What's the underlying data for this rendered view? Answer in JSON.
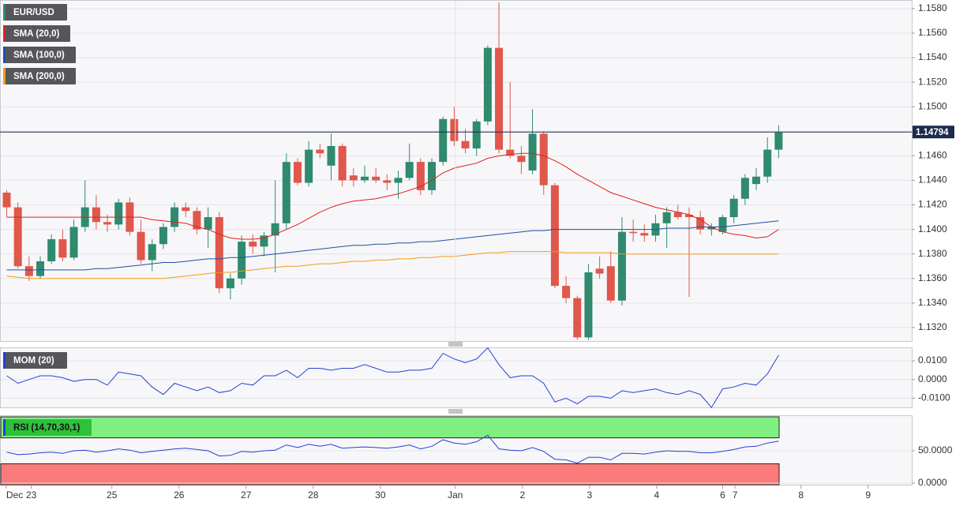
{
  "chart_data": [
    {
      "type": "candlestick",
      "name": "EUR/USD",
      "up_color": "#2f8a6e",
      "down_color": "#e0574b",
      "x": [
        0,
        1,
        2,
        3,
        4,
        5,
        6,
        7,
        8,
        9,
        10,
        11,
        12,
        13,
        14,
        15,
        16,
        17,
        18,
        19,
        20,
        21,
        22,
        23,
        24,
        25,
        26,
        27,
        28,
        29,
        30,
        31,
        32,
        33,
        34,
        35,
        36,
        37,
        38,
        39,
        40,
        41,
        42,
        43,
        44,
        45,
        46,
        47,
        48,
        49,
        50,
        51,
        52,
        53,
        54,
        55,
        56,
        57,
        58,
        59,
        60,
        61,
        62,
        63,
        64,
        65,
        66,
        67,
        68,
        69
      ],
      "open": [
        1.143,
        1.1418,
        1.137,
        1.1362,
        1.1374,
        1.1392,
        1.1377,
        1.1402,
        1.1418,
        1.1406,
        1.1404,
        1.1422,
        1.1398,
        1.1375,
        1.1388,
        1.1402,
        1.1418,
        1.1415,
        1.14,
        1.141,
        1.1352,
        1.136,
        1.139,
        1.1386,
        1.1395,
        1.1405,
        1.1455,
        1.1438,
        1.1465,
        1.1452,
        1.1468,
        1.1444,
        1.144,
        1.1443,
        1.144,
        1.1438,
        1.1442,
        1.1455,
        1.1432,
        1.1455,
        1.149,
        1.1472,
        1.1466,
        1.1488,
        1.1548,
        1.1465,
        1.146,
        1.1448,
        1.1478,
        1.1436,
        1.1354,
        1.1344,
        1.1312,
        1.1368,
        1.137,
        1.1342,
        1.1398,
        1.1397,
        1.1395,
        1.1405,
        1.1414,
        1.1412,
        1.141,
        1.14,
        1.1398,
        1.141,
        1.1425,
        1.1437,
        1.1443,
        1.1465
      ],
      "high": [
        1.1432,
        1.1422,
        1.1378,
        1.1378,
        1.1396,
        1.14,
        1.1408,
        1.144,
        1.1428,
        1.1412,
        1.1425,
        1.1426,
        1.1408,
        1.1392,
        1.1405,
        1.1422,
        1.1422,
        1.1418,
        1.1418,
        1.1414,
        1.1364,
        1.1395,
        1.1396,
        1.1398,
        1.144,
        1.1462,
        1.1458,
        1.1472,
        1.147,
        1.1478,
        1.147,
        1.145,
        1.1452,
        1.145,
        1.1445,
        1.1448,
        1.147,
        1.1458,
        1.1458,
        1.1492,
        1.15,
        1.1482,
        1.149,
        1.155,
        1.1585,
        1.152,
        1.1468,
        1.1498,
        1.148,
        1.1438,
        1.1362,
        1.1346,
        1.1372,
        1.1378,
        1.1382,
        1.141,
        1.1408,
        1.1404,
        1.1412,
        1.1418,
        1.142,
        1.1418,
        1.1415,
        1.1405,
        1.1412,
        1.1428,
        1.1445,
        1.145,
        1.1475,
        1.1485
      ],
      "low": [
        1.141,
        1.1368,
        1.1358,
        1.136,
        1.1372,
        1.1374,
        1.1375,
        1.1398,
        1.14,
        1.1398,
        1.14,
        1.1395,
        1.1372,
        1.1366,
        1.1384,
        1.1398,
        1.141,
        1.1396,
        1.1385,
        1.1348,
        1.1343,
        1.1355,
        1.138,
        1.1378,
        1.1365,
        1.14,
        1.1436,
        1.1435,
        1.1458,
        1.144,
        1.1435,
        1.1435,
        1.1438,
        1.1438,
        1.1432,
        1.1425,
        1.144,
        1.1428,
        1.1428,
        1.1452,
        1.1468,
        1.1462,
        1.146,
        1.1485,
        1.1462,
        1.1458,
        1.1445,
        1.1445,
        1.1428,
        1.1352,
        1.134,
        1.131,
        1.131,
        1.136,
        1.134,
        1.1338,
        1.139,
        1.139,
        1.139,
        1.1385,
        1.1408,
        1.1345,
        1.1396,
        1.1395,
        1.1396,
        1.1405,
        1.142,
        1.1432,
        1.1438,
        1.1458
      ],
      "close": [
        1.1418,
        1.137,
        1.1362,
        1.1374,
        1.1392,
        1.1377,
        1.1402,
        1.1418,
        1.1406,
        1.1404,
        1.1422,
        1.1398,
        1.1375,
        1.1388,
        1.1402,
        1.1418,
        1.1415,
        1.14,
        1.141,
        1.1352,
        1.136,
        1.139,
        1.1386,
        1.1395,
        1.1405,
        1.1455,
        1.1438,
        1.1465,
        1.1462,
        1.1468,
        1.144,
        1.144,
        1.1443,
        1.144,
        1.1438,
        1.1442,
        1.1455,
        1.1432,
        1.1455,
        1.149,
        1.1472,
        1.1466,
        1.1488,
        1.1548,
        1.1465,
        1.146,
        1.1455,
        1.1478,
        1.1436,
        1.1354,
        1.1344,
        1.1312,
        1.1365,
        1.1364,
        1.1342,
        1.1398,
        1.1397,
        1.1395,
        1.1405,
        1.1414,
        1.141,
        1.141,
        1.14,
        1.1402,
        1.141,
        1.1425,
        1.1442,
        1.1443,
        1.1465,
        1.1479
      ],
      "series": [
        {
          "name": "SMA (20,0)",
          "color": "#e0201a",
          "values": [
            1.141,
            1.141,
            1.141,
            1.141,
            1.141,
            1.141,
            1.141,
            1.141,
            1.141,
            1.141,
            1.141,
            1.141,
            1.141,
            1.1408,
            1.1407,
            1.1406,
            1.1405,
            1.1402,
            1.14,
            1.1396,
            1.1393,
            1.1392,
            1.1392,
            1.1393,
            1.1396,
            1.14,
            1.1404,
            1.1409,
            1.1414,
            1.1418,
            1.1421,
            1.1423,
            1.1424,
            1.1425,
            1.1427,
            1.1429,
            1.1432,
            1.1435,
            1.144,
            1.1446,
            1.145,
            1.1452,
            1.1454,
            1.1458,
            1.146,
            1.1461,
            1.1462,
            1.1462,
            1.146,
            1.1456,
            1.1451,
            1.1445,
            1.144,
            1.1435,
            1.143,
            1.1427,
            1.1424,
            1.1421,
            1.1418,
            1.1416,
            1.1414,
            1.1412,
            1.1408,
            1.1402,
            1.1398,
            1.1396,
            1.1395,
            1.1393,
            1.1394,
            1.14
          ]
        },
        {
          "name": "SMA (100,0)",
          "color": "#1f4fa8",
          "values": [
            1.1367,
            1.1367,
            1.1367,
            1.1367,
            1.1367,
            1.1367,
            1.1367,
            1.1367,
            1.1368,
            1.1368,
            1.1369,
            1.137,
            1.1371,
            1.1372,
            1.1373,
            1.1373,
            1.1374,
            1.1375,
            1.1376,
            1.1376,
            1.1377,
            1.1377,
            1.1378,
            1.1379,
            1.138,
            1.1381,
            1.1382,
            1.1383,
            1.1384,
            1.1385,
            1.1386,
            1.1387,
            1.1387,
            1.1388,
            1.1388,
            1.1389,
            1.1389,
            1.139,
            1.139,
            1.1391,
            1.1392,
            1.1393,
            1.1394,
            1.1395,
            1.1396,
            1.1397,
            1.1398,
            1.1399,
            1.1399,
            1.14,
            1.14,
            1.14,
            1.14,
            1.14,
            1.14,
            1.14,
            1.14,
            1.14,
            1.14,
            1.1401,
            1.1401,
            1.1401,
            1.1402,
            1.1402,
            1.1402,
            1.1403,
            1.1404,
            1.1405,
            1.1406,
            1.1407
          ]
        },
        {
          "name": "SMA (200,0)",
          "color": "#f39a1a",
          "values": [
            1.1362,
            1.1361,
            1.136,
            1.136,
            1.136,
            1.136,
            1.136,
            1.136,
            1.136,
            1.136,
            1.136,
            1.136,
            1.136,
            1.136,
            1.136,
            1.1361,
            1.1362,
            1.1363,
            1.1364,
            1.1365,
            1.1365,
            1.1366,
            1.1367,
            1.1368,
            1.1369,
            1.137,
            1.137,
            1.1371,
            1.1372,
            1.1372,
            1.1373,
            1.1374,
            1.1374,
            1.1375,
            1.1375,
            1.1376,
            1.1376,
            1.1377,
            1.1377,
            1.1378,
            1.1378,
            1.1379,
            1.138,
            1.1381,
            1.1381,
            1.1382,
            1.1382,
            1.1382,
            1.1382,
            1.1382,
            1.1381,
            1.1381,
            1.1381,
            1.1381,
            1.1381,
            1.138,
            1.138,
            1.138,
            1.138,
            1.138,
            1.138,
            1.138,
            1.138,
            1.138,
            1.138,
            1.138,
            1.138,
            1.138,
            1.138,
            1.138
          ]
        }
      ],
      "last_price": 1.14794,
      "last_price_color": "#1c2a4f",
      "xlim": [
        -0.6,
        80.9
      ],
      "xticks": [
        {
          "value": -0.04,
          "label": "Dec"
        },
        {
          "value": 2.2,
          "label": "23"
        },
        {
          "value": 9.4,
          "label": "25"
        },
        {
          "value": 15.4,
          "label": "26"
        },
        {
          "value": 21.4,
          "label": "27"
        },
        {
          "value": 27.4,
          "label": "28"
        },
        {
          "value": 33.4,
          "label": "30"
        },
        {
          "value": 40.1,
          "label": "Jan"
        },
        {
          "value": 46.1,
          "label": "2"
        },
        {
          "value": 52.1,
          "label": "3"
        },
        {
          "value": 58.1,
          "label": "4"
        },
        {
          "value": 64.0,
          "label": "6"
        },
        {
          "value": 65.1,
          "label": "7"
        },
        {
          "value": 71.0,
          "label": "8"
        },
        {
          "value": 77.0,
          "label": "9"
        }
      ],
      "ylim": [
        1.1309,
        1.1587
      ],
      "yticks": [
        {
          "value": 1.132,
          "label": "1.1320"
        },
        {
          "value": 1.134,
          "label": "1.1340"
        },
        {
          "value": 1.136,
          "label": "1.1360"
        },
        {
          "value": 1.138,
          "label": "1.1380"
        },
        {
          "value": 1.14,
          "label": "1.1400"
        },
        {
          "value": 1.142,
          "label": "1.1420"
        },
        {
          "value": 1.144,
          "label": "1.1440"
        },
        {
          "value": 1.146,
          "label": "1.1460"
        },
        {
          "value": 1.148,
          "label": "1.1480"
        },
        {
          "value": 1.15,
          "label": "1.1500"
        },
        {
          "value": 1.152,
          "label": "1.1520"
        },
        {
          "value": 1.154,
          "label": "1.1540"
        },
        {
          "value": 1.156,
          "label": "1.1560"
        },
        {
          "value": 1.158,
          "label": "1.1580"
        }
      ],
      "grid": true
    },
    {
      "type": "line",
      "series": [
        {
          "name": "MOM (20)",
          "color": "#2240d8",
          "values": [
            0.002,
            -0.002,
            0.0,
            0.002,
            0.002,
            0.001,
            -0.001,
            0.0,
            0.0,
            -0.003,
            0.004,
            0.003,
            0.002,
            -0.004,
            -0.008,
            -0.002,
            -0.004,
            -0.006,
            -0.004,
            -0.007,
            -0.006,
            -0.002,
            -0.003,
            0.002,
            0.002,
            0.005,
            0.001,
            0.006,
            0.006,
            0.005,
            0.006,
            0.006,
            0.008,
            0.006,
            0.004,
            0.004,
            0.005,
            0.005,
            0.006,
            0.014,
            0.011,
            0.009,
            0.011,
            0.017,
            0.008,
            0.001,
            0.002,
            0.002,
            -0.002,
            -0.012,
            -0.01,
            -0.013,
            -0.009,
            -0.009,
            -0.01,
            -0.006,
            -0.007,
            -0.006,
            -0.005,
            -0.007,
            -0.008,
            -0.006,
            -0.008,
            -0.015,
            -0.005,
            -0.004,
            -0.002,
            -0.003,
            0.003,
            0.013
          ]
        }
      ],
      "ylim": [
        -0.0149,
        0.0172
      ],
      "yticks": [
        {
          "value": -0.01,
          "label": "-0.0100"
        },
        {
          "value": 0,
          "label": "0.0000"
        },
        {
          "value": 0.01,
          "label": "0.0100"
        }
      ],
      "grid": true
    },
    {
      "type": "line",
      "series": [
        {
          "name": "RSI (14,70,30,1)",
          "color": "#2240d8",
          "values": [
            48,
            44,
            45,
            47,
            48,
            46,
            50,
            51,
            48,
            50,
            53,
            51,
            47,
            49,
            51,
            53,
            54,
            52,
            50,
            42,
            43,
            49,
            48,
            50,
            51,
            59,
            55,
            60,
            57,
            60,
            54,
            55,
            56,
            55,
            54,
            56,
            59,
            53,
            57,
            67,
            62,
            60,
            64,
            74,
            53,
            51,
            50,
            55,
            49,
            37,
            36,
            31,
            40,
            40,
            36,
            46,
            46,
            45,
            48,
            50,
            49,
            49,
            47,
            47,
            49,
            52,
            56,
            57,
            62,
            65
          ]
        }
      ],
      "overbought": 70,
      "overbought_color": "#7ff07f",
      "oversold": 30,
      "oversold_color": "#fb7b7b",
      "ylim": [
        -2.4,
        104.9
      ],
      "yticks": [
        {
          "value": 0,
          "label": "0.0000"
        },
        {
          "value": 50,
          "label": "50.0000"
        }
      ],
      "grid": true
    }
  ]
}
